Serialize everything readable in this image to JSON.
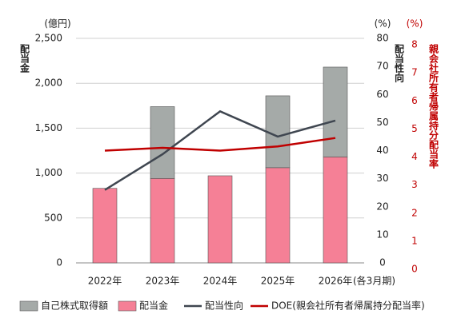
{
  "chart_data": {
    "type": "bar",
    "y_unit": "(億円)",
    "y_label": "配当金",
    "y2_unit": "(%)",
    "y2_label": "配当性向",
    "y3_unit": "(%)",
    "y3_label": "親会社所有者帰属持分配当率",
    "x_note": "(各3月期)",
    "categories": [
      "2022年",
      "2023年",
      "2024年",
      "2025年",
      "2026年"
    ],
    "series": [
      {
        "name": "自己株式取得額",
        "type": "bar",
        "stacked_on": 1,
        "color": "#a5aaa8",
        "values": [
          null,
          800,
          null,
          800,
          1000
        ]
      },
      {
        "name": "配当金",
        "type": "bar",
        "color": "#f58096",
        "values": [
          830,
          940,
          970,
          1060,
          1180
        ]
      },
      {
        "name": "配当性向",
        "type": "line",
        "axis": "y2",
        "color": "#3f4650",
        "values": [
          26,
          38.7,
          54,
          45,
          50.7
        ]
      },
      {
        "name": "DOE(親会社所有者帰属持分配当率)",
        "type": "line",
        "axis": "y3",
        "color": "#c00000",
        "values": [
          4.0,
          4.1,
          4.0,
          4.15,
          4.45
        ]
      }
    ],
    "ylim": [
      0,
      2500
    ],
    "yticks": [
      0,
      500,
      {
        "value": 1000,
        "label": "1,000"
      },
      {
        "value": 1500,
        "label": "1,500"
      },
      {
        "value": 2000,
        "label": "2,000"
      },
      {
        "value": 2500,
        "label": "2,500"
      }
    ],
    "y2lim": [
      0,
      80
    ],
    "y2ticks": [
      0,
      10,
      20,
      30,
      40,
      50,
      60,
      70,
      80
    ],
    "y3lim": [
      0,
      8
    ],
    "y3ticks": [
      0,
      1,
      2,
      3,
      4,
      5,
      6,
      7,
      8
    ],
    "y3color": "#c00000",
    "grid": true
  }
}
